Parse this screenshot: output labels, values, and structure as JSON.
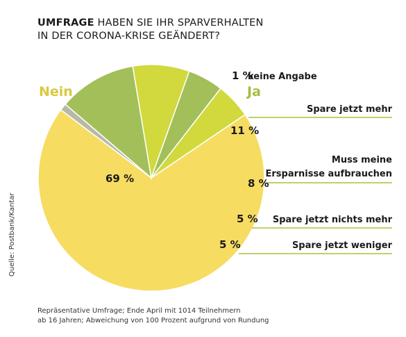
{
  "title": {
    "bold": "UMFRAGE",
    "line1_rest": " HABEN SIE IHR SPARVERHALTEN",
    "line2": "IN DER CORONA-KRISE GEÄNDERT?"
  },
  "source": "Quelle: Postbank/Kantar",
  "footnote": {
    "line1": "Repräsentative Umfrage; Ende April mit 1014 Teilnehmern",
    "line2": "ab 16 Jahren; Abweichung von 100 Prozent aufgrund von Rundung"
  },
  "chart_data": {
    "type": "pie",
    "groups": [
      {
        "label": "Nein",
        "color": "#d9c93e"
      },
      {
        "label": "Ja",
        "color": "#a3bd42"
      }
    ],
    "slices": [
      {
        "label": "",
        "group": "Nein",
        "value": 69,
        "value_label": "69 %",
        "color": "#f7dc62"
      },
      {
        "label": "keine Angabe",
        "group": "",
        "value": 1,
        "value_label": "1 %",
        "color": "#b9b9a8"
      },
      {
        "label": "Spare jetzt mehr",
        "group": "Ja",
        "value": 11,
        "value_label": "11 %",
        "color": "#a2bf5a"
      },
      {
        "label": "Muss meine Ersparnisse aufbrauchen",
        "group": "Ja",
        "value": 8,
        "value_label": "8 %",
        "color": "#d1d93d"
      },
      {
        "label": "Spare jetzt nichts mehr",
        "group": "Ja",
        "value": 5,
        "value_label": "5 %",
        "color": "#a2bf5a"
      },
      {
        "label": "Spare jetzt weniger",
        "group": "Ja",
        "value": 5,
        "value_label": "5 %",
        "color": "#d1d93d"
      }
    ],
    "leader_line_color": "#a9c23c"
  }
}
